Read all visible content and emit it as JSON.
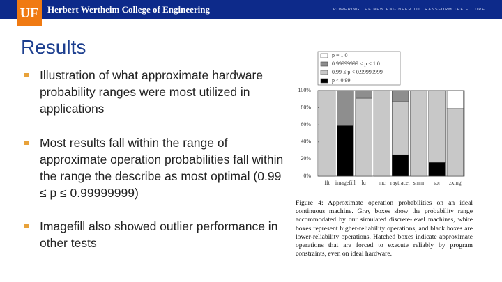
{
  "header": {
    "logo": "UF",
    "college": "Herbert Wertheim College of Engineering",
    "tagline": "POWERING THE NEW ENGINEER TO TRANSFORM THE FUTURE"
  },
  "title": "Results",
  "bullets": [
    "Illustration of what approximate hardware probability ranges were most utilized in applications",
    "Most results fall within the range of approximate operation probabilities fall within the range the describe as most optimal (0.99 ≤ p ≤ 0.99999999)",
    "Imagefill also showed outlier performance in other tests"
  ],
  "chart_data": {
    "type": "stacked_bar",
    "categories": [
      "fft",
      "imagefill",
      "lu",
      "mc",
      "raytracer",
      "smm",
      "sor",
      "zxing"
    ],
    "series": [
      {
        "name": "p < 0.99",
        "color": "#000000",
        "values": [
          0,
          59,
          0,
          0,
          25,
          0,
          16,
          0
        ]
      },
      {
        "name": "0.99 ≤ p < 0.99999999",
        "color": "#c8c8c8",
        "values": [
          100,
          0,
          91,
          100,
          62,
          100,
          84,
          79
        ]
      },
      {
        "name": "0.99999999 ≤ p < 1.0",
        "color": "#8e8e8e",
        "values": [
          0,
          41,
          9,
          0,
          13,
          0,
          0,
          0
        ]
      },
      {
        "name": "p = 1.0",
        "color": "#ffffff",
        "values": [
          0,
          0,
          0,
          0,
          0,
          0,
          0,
          21
        ]
      }
    ],
    "ylim": [
      0,
      100
    ],
    "yticks": [
      {
        "value": 0,
        "label": "0%"
      },
      {
        "value": 20,
        "label": "20%"
      },
      {
        "value": 40,
        "label": "40%"
      },
      {
        "value": 60,
        "label": "60%"
      },
      {
        "value": 80,
        "label": "80%"
      },
      {
        "value": 100,
        "label": "100%"
      }
    ],
    "legend": "top"
  },
  "caption": "Figure 4: Approximate operation probabilities on an ideal continuous machine. Gray boxes show the probability range accommodated by our simulated discrete-level machines, white boxes represent higher-reliability operations, and black boxes are lower-reliability operations. Hatched boxes indicate approximate operations that are forced to execute reliably by program constraints, even on ideal hardware."
}
